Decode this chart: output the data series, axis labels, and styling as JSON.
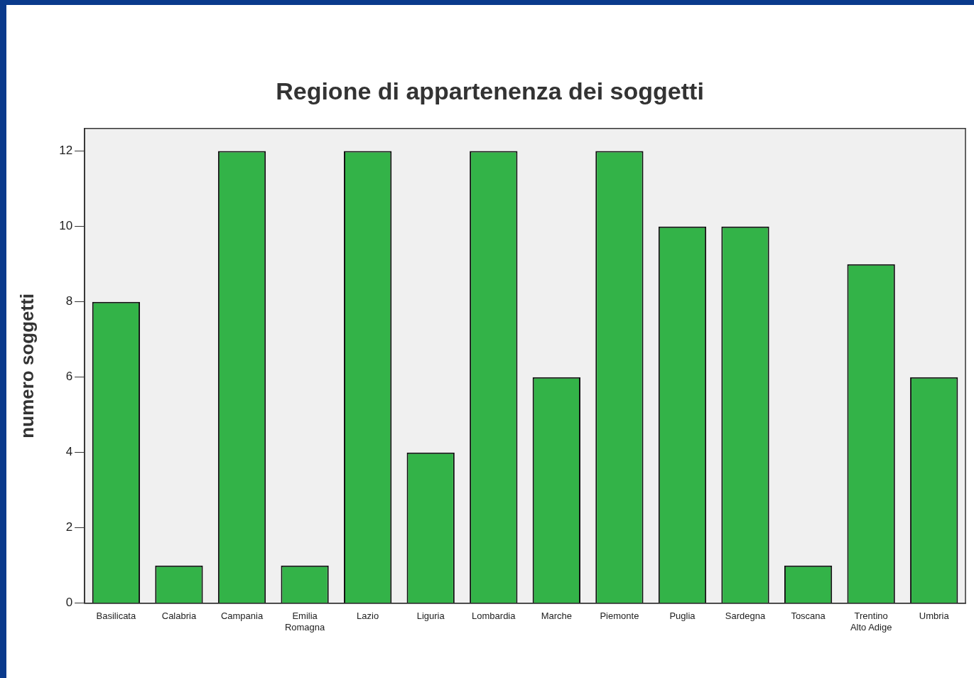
{
  "chart_data": {
    "type": "bar",
    "title": "Regione di appartenenza dei soggetti",
    "ylabel": "numero soggetti",
    "categories": [
      "Basilicata",
      "Calabria",
      "Campania",
      "Emilia\nRomagna",
      "Lazio",
      "Liguria",
      "Lombardia",
      "Marche",
      "Piemonte",
      "Puglia",
      "Sardegna",
      "Toscana",
      "Trentino\nAlto Adige",
      "Umbria"
    ],
    "values": [
      8,
      1,
      12,
      1,
      12,
      4,
      12,
      6,
      12,
      10,
      10,
      1,
      9,
      6
    ],
    "color": "#33b348",
    "ylim": [
      0,
      12.6
    ],
    "yticks": [
      0,
      2,
      4,
      6,
      8,
      10,
      12
    ],
    "grid": false,
    "legend": false
  }
}
